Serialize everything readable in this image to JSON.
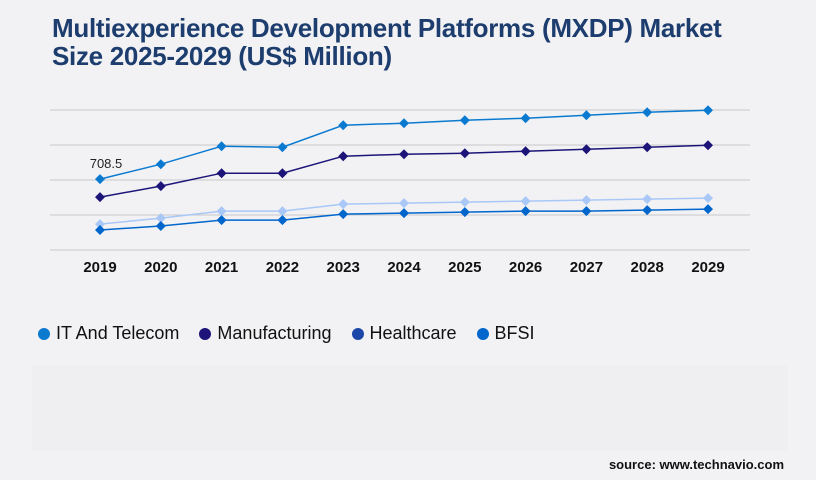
{
  "chart_data": {
    "type": "line",
    "title": "Multiexperience Development Platforms (MXDP) Market Size 2025-2029 (US$ Million)",
    "categories": [
      "2019",
      "2020",
      "2021",
      "2022",
      "2023",
      "2024",
      "2025",
      "2026",
      "2027",
      "2028",
      "2029"
    ],
    "ylim": [
      0,
      1400
    ],
    "grid": true,
    "legend_placement": "bottom-left",
    "series": [
      {
        "name": "IT And Telecom",
        "color": "#0a7ad1",
        "marker_color": "#0a7ad1",
        "values": [
          708.5,
          858,
          1038,
          1028,
          1248,
          1268,
          1298,
          1318,
          1348,
          1378,
          1398
        ]
      },
      {
        "name": "Manufacturing",
        "color": "#1c1478",
        "marker_color": "#1c1478",
        "values": [
          529,
          639,
          768,
          768,
          938,
          958,
          968,
          988,
          1008,
          1028,
          1048
        ]
      },
      {
        "name": "Healthcare",
        "color": "#a9c8f8",
        "marker_color": "#1a47a8",
        "values": [
          259,
          319,
          389,
          389,
          459,
          469,
          479,
          489,
          499,
          509,
          519
        ]
      },
      {
        "name": "BFSI",
        "color": "#0066cc",
        "marker_color": "#0066cc",
        "values": [
          200,
          240,
          299,
          299,
          359,
          369,
          379,
          389,
          389,
          399,
          409
        ]
      }
    ],
    "annotations": [
      {
        "series": "IT And Telecom",
        "category": "2019",
        "label": "708.5"
      }
    ]
  },
  "source": "source: www.technavio.com"
}
